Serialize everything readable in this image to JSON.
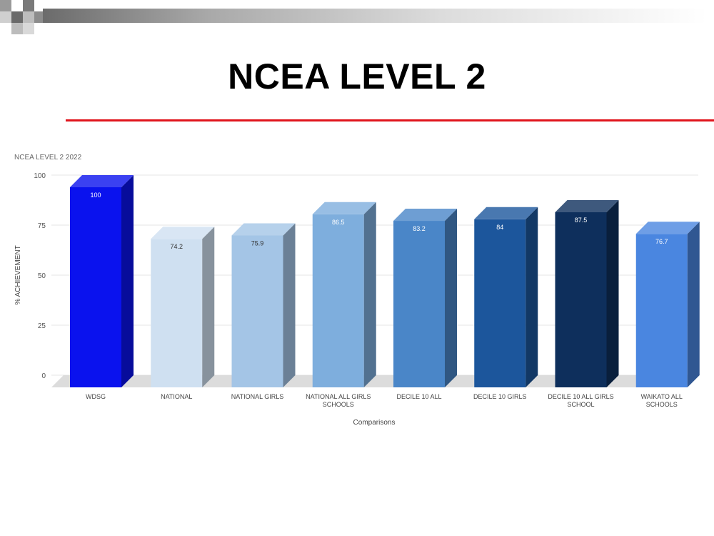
{
  "slide": {
    "title": "NCEA LEVEL 2"
  },
  "chart_data": {
    "type": "bar",
    "title": "NCEA LEVEL 2 2022",
    "xlabel": "Comparisons",
    "ylabel": "% ACHIEVEMENT",
    "ylim": [
      0,
      100
    ],
    "yticks": [
      0,
      25,
      50,
      75,
      100
    ],
    "grid": true,
    "style": "3d-column",
    "categories": [
      [
        "WDSG"
      ],
      [
        "NATIONAL"
      ],
      [
        "NATIONAL GIRLS"
      ],
      [
        "NATIONAL ALL GIRLS",
        "SCHOOLS"
      ],
      [
        "DECILE 10 ALL"
      ],
      [
        "DECILE 10 GIRLS"
      ],
      [
        "DECILE 10 ALL GIRLS",
        "SCHOOL"
      ],
      [
        "WAIKATO ALL",
        "SCHOOLS"
      ]
    ],
    "values": [
      100,
      74.2,
      75.9,
      86.5,
      83.2,
      84,
      87.5,
      76.7
    ],
    "colors": [
      "#0a12ee",
      "#cfe0f1",
      "#a4c5e6",
      "#7eaedd",
      "#4a86c8",
      "#1c569c",
      "#0e2f5c",
      "#4a86e0"
    ]
  }
}
